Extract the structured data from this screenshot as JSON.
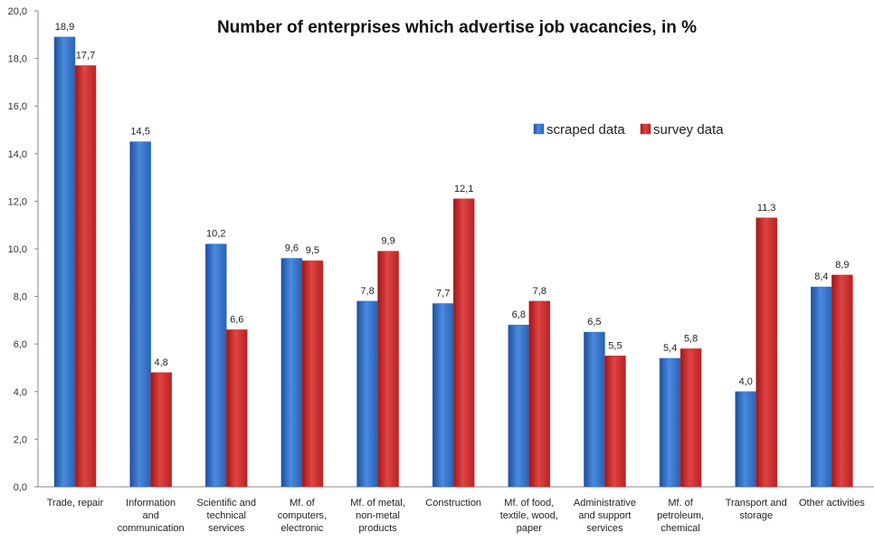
{
  "chart_data": {
    "type": "bar",
    "title": "Number of enterprises which advertise job vacancies, in %",
    "xlabel": "",
    "ylabel": "",
    "ylim": [
      0,
      20
    ],
    "yticks": [
      "0,0",
      "2,0",
      "4,0",
      "6,0",
      "8,0",
      "10,0",
      "12,0",
      "14,0",
      "16,0",
      "18,0",
      "20,0"
    ],
    "grid": false,
    "legend_position": "top-right",
    "categories": [
      [
        "Trade, repair"
      ],
      [
        "Information",
        "and",
        "communication"
      ],
      [
        "Scientific and",
        "technical",
        "services"
      ],
      [
        "Mf. of",
        "computers,",
        "electronic"
      ],
      [
        "Mf. of metal,",
        "non-metal",
        "products"
      ],
      [
        "Construction"
      ],
      [
        "Mf. of food,",
        "textile, wood,",
        "paper"
      ],
      [
        "Administrative",
        "and support",
        "services"
      ],
      [
        "Mf. of",
        "petroleum,",
        "chemical"
      ],
      [
        "Transport and",
        "storage"
      ],
      [
        "Other activities"
      ]
    ],
    "series": [
      {
        "name": "scraped data",
        "color": "#2f6fc3",
        "values": [
          18.9,
          14.5,
          10.2,
          9.6,
          7.8,
          7.7,
          6.8,
          6.5,
          5.4,
          4.0,
          8.4
        ],
        "labels": [
          "18,9",
          "14,5",
          "10,2",
          "9,6",
          "7,8",
          "7,7",
          "6,8",
          "6,5",
          "5,4",
          "4,0",
          "8,4"
        ]
      },
      {
        "name": "survey data",
        "color": "#d02a2a",
        "values": [
          17.7,
          4.8,
          6.6,
          9.5,
          9.9,
          12.1,
          7.8,
          5.5,
          5.8,
          11.3,
          8.9
        ],
        "labels": [
          "17,7",
          "4,8",
          "6,6",
          "9,5",
          "9,9",
          "12,1",
          "7,8",
          "5,5",
          "5,8",
          "11,3",
          "8,9"
        ]
      }
    ]
  }
}
